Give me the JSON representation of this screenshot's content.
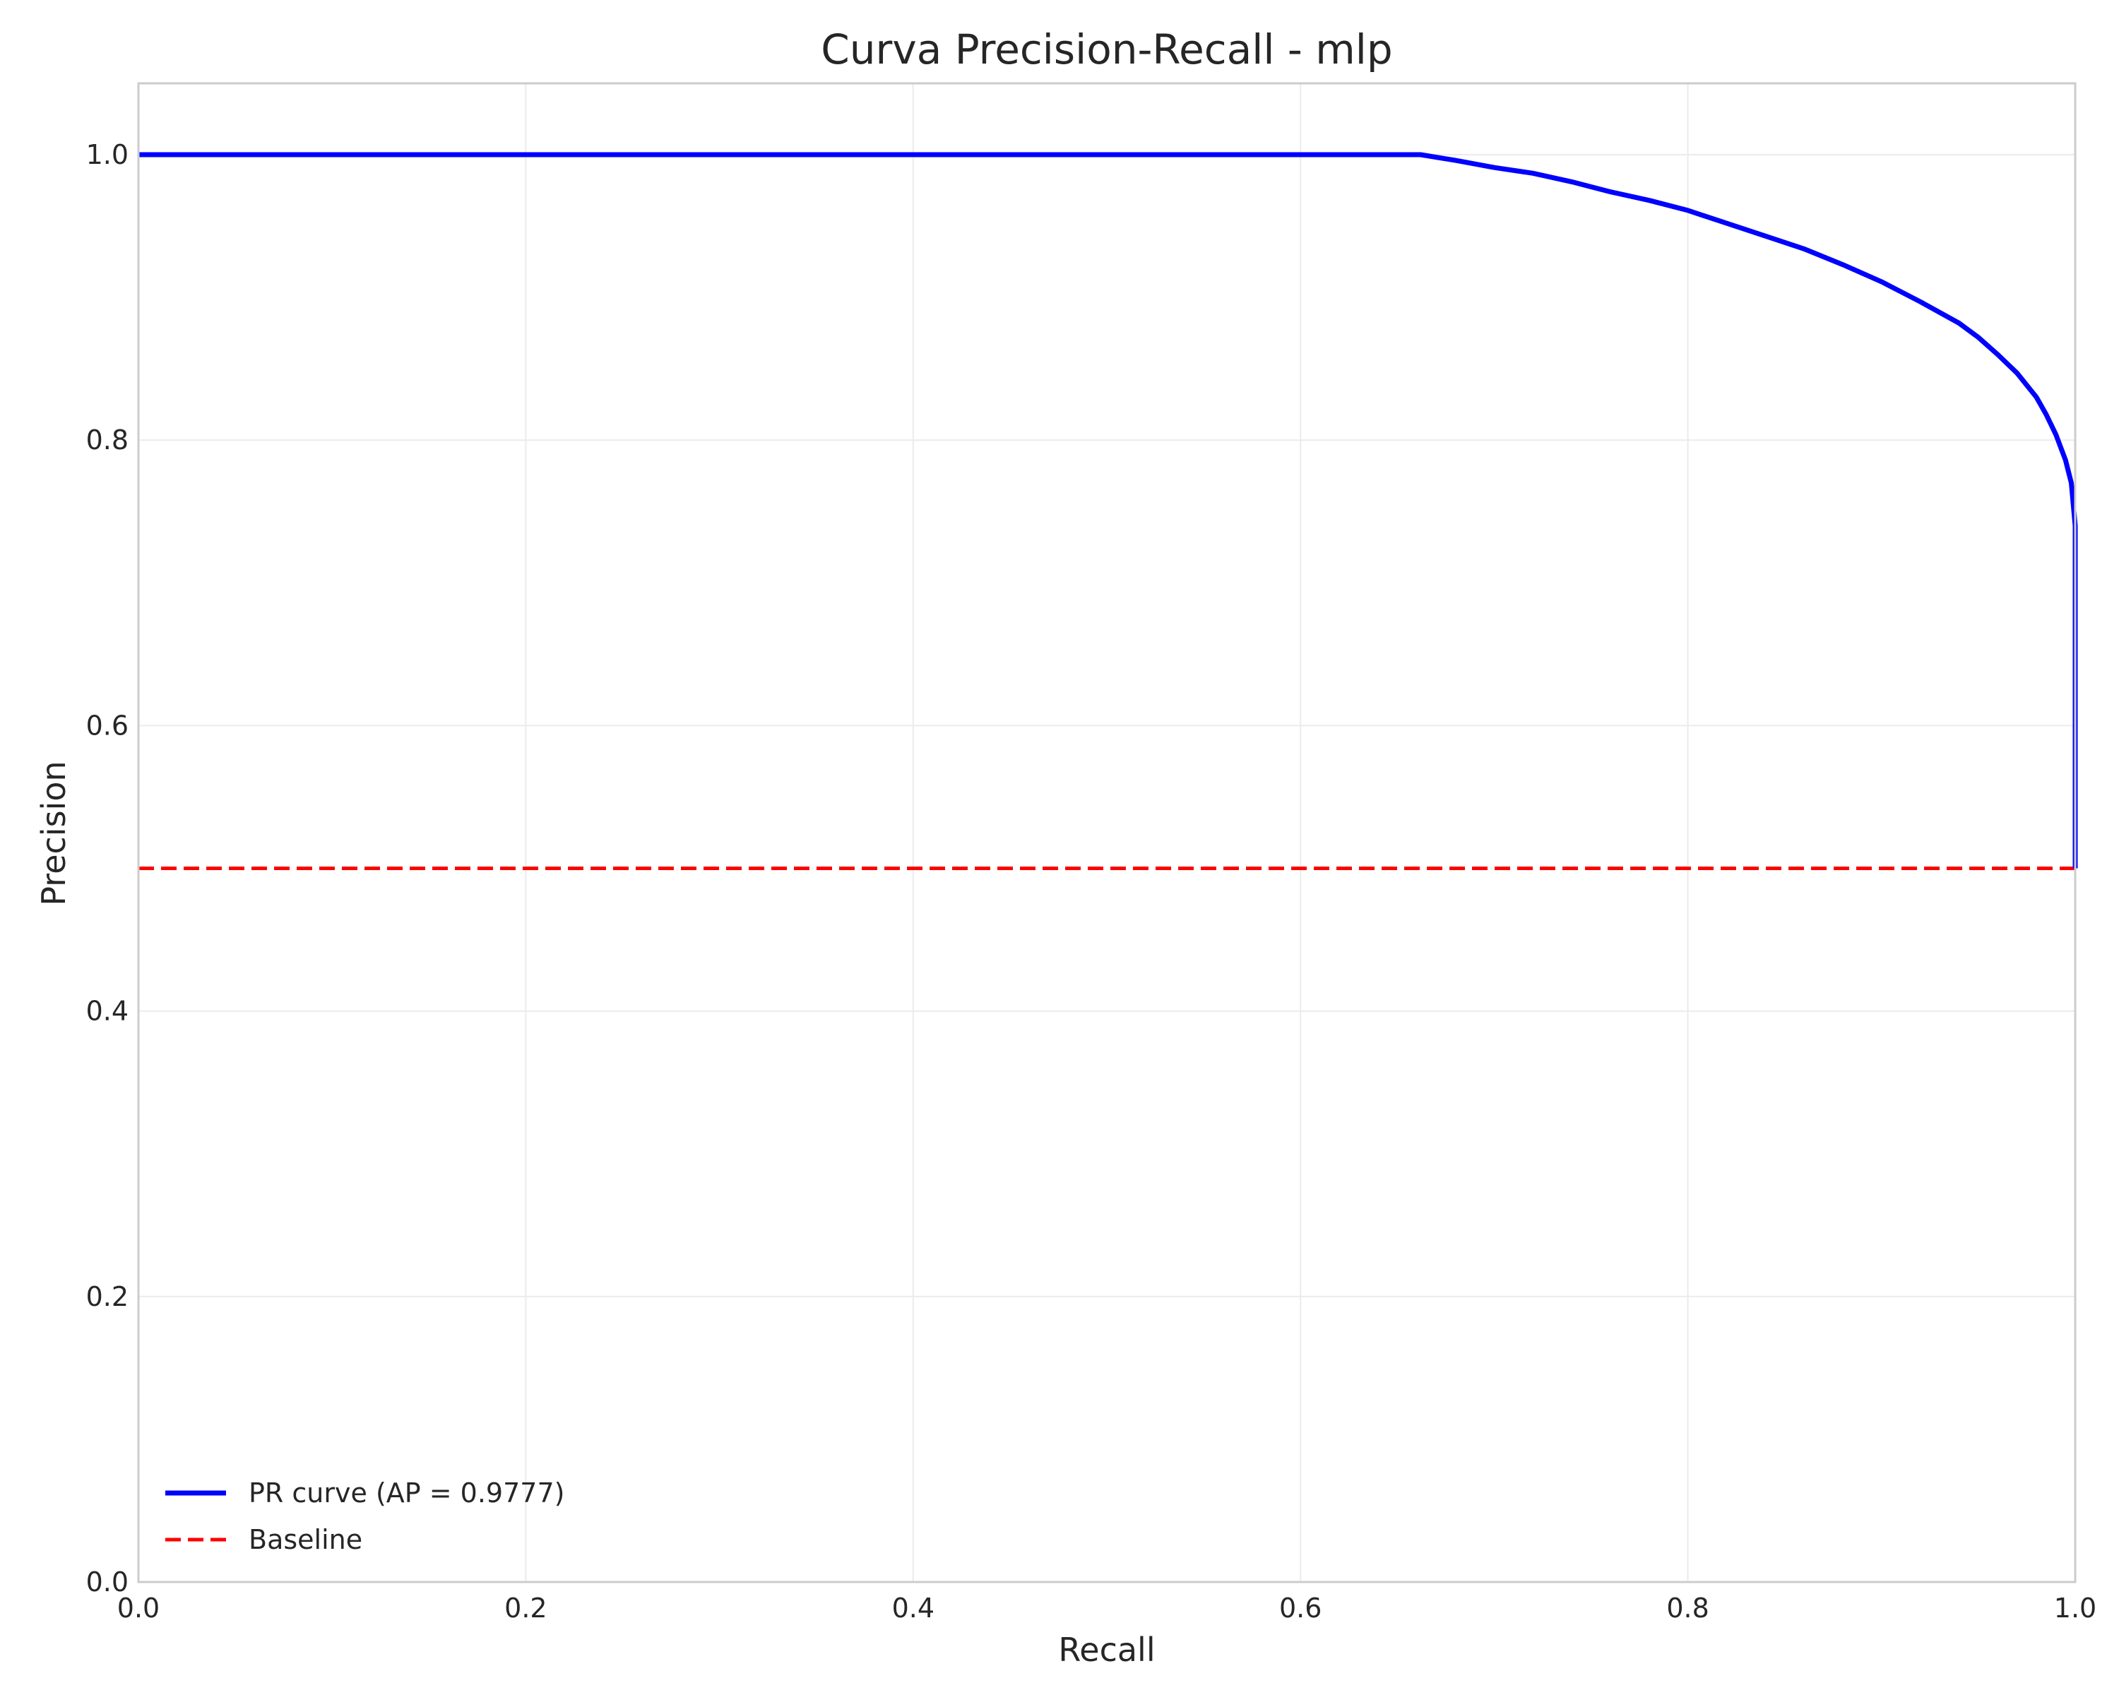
{
  "chart_data": {
    "type": "line",
    "title": "Curva Precision-Recall - mlp",
    "xlabel": "Recall",
    "ylabel": "Precision",
    "xlim": [
      0.0,
      1.0
    ],
    "ylim": [
      0.0,
      1.05
    ],
    "xticks": [
      "0.0",
      "0.2",
      "0.4",
      "0.6",
      "0.8",
      "1.0"
    ],
    "yticks": [
      "0.0",
      "0.2",
      "0.4",
      "0.6",
      "0.8",
      "1.0"
    ],
    "grid": true,
    "legend_position": "lower-left",
    "series": [
      {
        "name": "PR curve (AP = 0.9777)",
        "color": "#0000ff",
        "style": "solid",
        "x": [
          0.0,
          0.1,
          0.2,
          0.3,
          0.4,
          0.5,
          0.6,
          0.662,
          0.68,
          0.7,
          0.72,
          0.74,
          0.76,
          0.78,
          0.8,
          0.82,
          0.84,
          0.86,
          0.88,
          0.9,
          0.92,
          0.94,
          0.95,
          0.96,
          0.97,
          0.98,
          0.985,
          0.99,
          0.995,
          0.998,
          1.0,
          1.0
        ],
        "y": [
          1.0,
          1.0,
          1.0,
          1.0,
          1.0,
          1.0,
          1.0,
          1.0,
          0.996,
          0.991,
          0.987,
          0.981,
          0.974,
          0.968,
          0.961,
          0.952,
          0.943,
          0.934,
          0.923,
          0.911,
          0.897,
          0.882,
          0.872,
          0.86,
          0.847,
          0.83,
          0.818,
          0.804,
          0.786,
          0.77,
          0.74,
          0.5
        ]
      },
      {
        "name": "Baseline",
        "color": "#ff0000",
        "style": "dashed",
        "x": [
          0.0,
          1.0
        ],
        "y": [
          0.5,
          0.5
        ]
      }
    ]
  }
}
